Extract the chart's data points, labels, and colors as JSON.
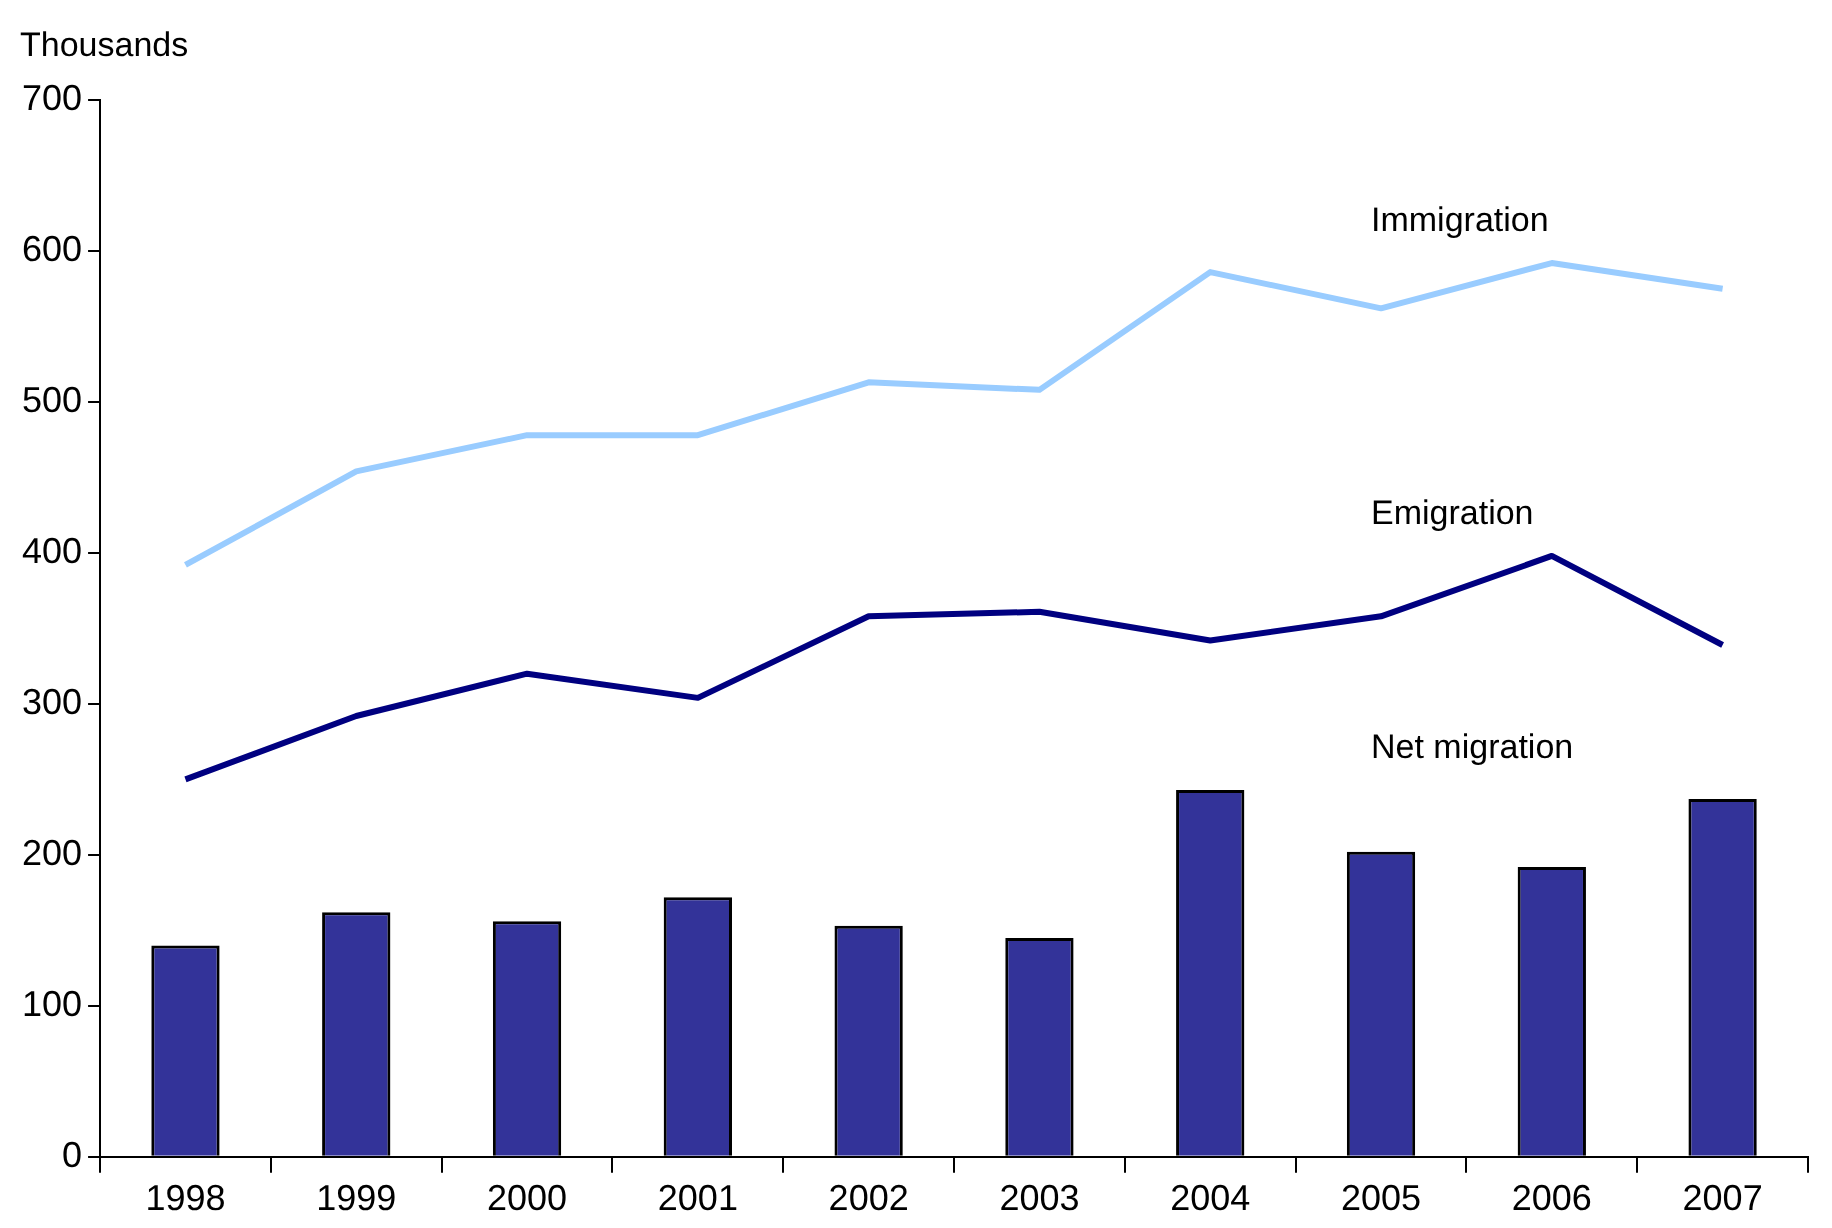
{
  "chart_data": {
    "type": "bar",
    "ylabel": "Thousands",
    "categories": [
      "1998",
      "1999",
      "2000",
      "2001",
      "2002",
      "2003",
      "2004",
      "2005",
      "2006",
      "2007"
    ],
    "series": [
      {
        "name": "Net migration",
        "color": "#333399",
        "values": [
          140,
          162,
          156,
          172,
          153,
          145,
          243,
          202,
          192,
          237
        ]
      },
      {
        "name": "Immigration",
        "type": "line",
        "color": "#99ccff",
        "values": [
          392,
          454,
          478,
          478,
          513,
          508,
          586,
          562,
          592,
          575
        ]
      },
      {
        "name": "Emigration",
        "type": "line",
        "color": "#000080",
        "values": [
          250,
          292,
          320,
          304,
          358,
          361,
          342,
          358,
          398,
          339
        ]
      }
    ],
    "ylim": [
      0,
      700
    ],
    "yticks": [
      0,
      100,
      200,
      300,
      400,
      500,
      600,
      700
    ],
    "grid": false,
    "legend": false,
    "marker": "none"
  }
}
